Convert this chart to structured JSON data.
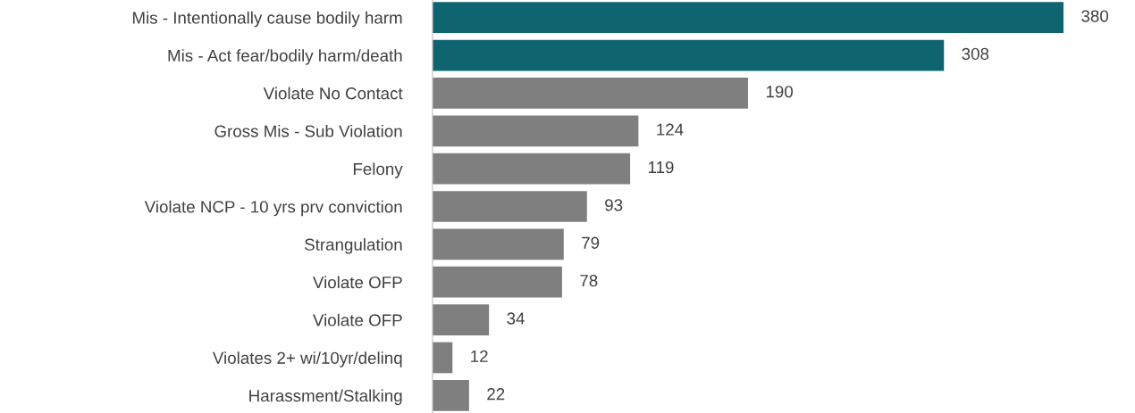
{
  "chart_data": {
    "type": "bar",
    "orientation": "horizontal",
    "data_labels": true,
    "grid": false,
    "legend": false,
    "tick_labels": "y",
    "categories": [
      "Mis - Intentionally cause bodily harm",
      "Mis - Act fear/bodily harm/death",
      "Violate No Contact",
      "Gross Mis - Sub Violation",
      "Felony",
      "Violate NCP - 10 yrs prv conviction",
      "Strangulation",
      "Violate OFP",
      "Violate OFP",
      "Violates 2+ wi/10yr/delinq",
      "Harassment/Stalking"
    ],
    "values": [
      380,
      308,
      190,
      124,
      119,
      93,
      79,
      78,
      34,
      12,
      22
    ],
    "colors": [
      "#0e6570",
      "#0e6570",
      "#7f7f7f",
      "#7f7f7f",
      "#7f7f7f",
      "#7f7f7f",
      "#7f7f7f",
      "#7f7f7f",
      "#7f7f7f",
      "#7f7f7f",
      "#7f7f7f"
    ]
  }
}
